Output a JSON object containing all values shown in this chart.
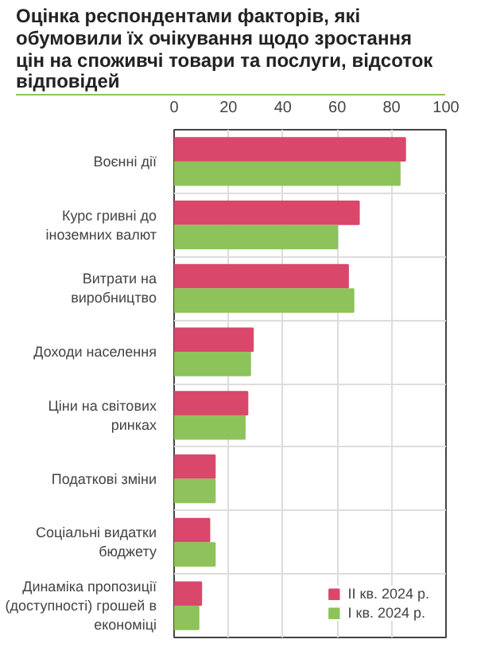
{
  "chart_data": {
    "type": "bar",
    "orientation": "horizontal",
    "title": "Оцінка респондентами факторів, які обумовили їх очікування щодо зростання цін на споживчі товари та послуги, відсоток відповідей",
    "categories": [
      "Воєнні дії",
      "Курс гривні до\nіноземних валют",
      "Витрати на\nвиробництво",
      "Доходи населення",
      "Ціни на світових\nринках",
      "Податкові зміни",
      "Соціальні видатки\nбюджету",
      "Динаміка пропозиції\n(доступності) грошей в\nекономіці"
    ],
    "series": [
      {
        "name": "II кв. 2024 р.",
        "color": "#d9486a",
        "values": [
          85,
          68,
          64,
          29,
          27,
          15,
          13,
          10
        ]
      },
      {
        "name": "I кв. 2024 р.",
        "color": "#8dc35a",
        "values": [
          83,
          60,
          66,
          28,
          26,
          15,
          15,
          9
        ]
      }
    ],
    "xlim": [
      0,
      100
    ],
    "xticks": [
      0,
      20,
      40,
      60,
      80,
      100
    ],
    "grid": true,
    "legend": "bottom right"
  }
}
